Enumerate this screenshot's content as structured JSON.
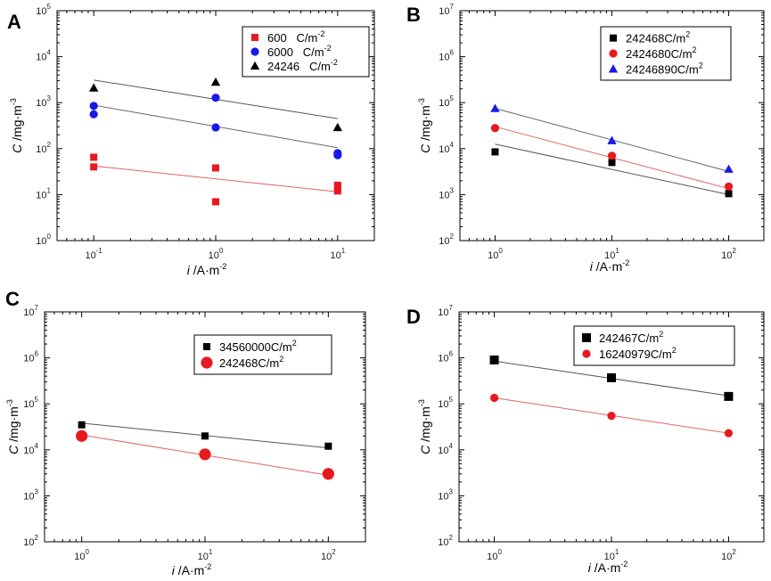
{
  "figure": {
    "description_labels": [
      "A",
      "B",
      "C",
      "D"
    ]
  },
  "chart_data": [
    {
      "panel": "A",
      "type": "scatter",
      "xscale": "log",
      "yscale": "log",
      "xlim": [
        0.05,
        20
      ],
      "ylim": [
        1,
        100000
      ],
      "xticks": [
        {
          "base": "10",
          "exp": "-1"
        },
        {
          "base": "10",
          "exp": "0"
        },
        {
          "base": "10",
          "exp": "1"
        }
      ],
      "xtick_values": [
        0.1,
        1,
        10
      ],
      "yticks": [
        {
          "base": "10",
          "exp": "0"
        },
        {
          "base": "10",
          "exp": "1"
        },
        {
          "base": "10",
          "exp": "2"
        },
        {
          "base": "10",
          "exp": "3"
        },
        {
          "base": "10",
          "exp": "4"
        },
        {
          "base": "10",
          "exp": "5"
        }
      ],
      "ytick_values": [
        1,
        10,
        100,
        1000,
        10000,
        100000
      ],
      "xlabel": {
        "italic": "i",
        "rest": " /A·m",
        "sup": "-2"
      },
      "ylabel": {
        "italic": "C",
        "rest": " /mg·m",
        "sup": "-3"
      },
      "legend": {
        "position": "top-right"
      },
      "series": [
        {
          "name": "600",
          "unit": "C/m",
          "unit_sup": "-2",
          "color": "#e8191e",
          "marker": "square",
          "marker_size": "small",
          "x": [
            0.1,
            0.1,
            1,
            1,
            10,
            10,
            10
          ],
          "y": [
            65,
            40,
            38,
            7,
            16,
            14,
            12
          ],
          "fit": {
            "x": [
              0.1,
              10
            ],
            "y": [
              42,
              11.5
            ]
          }
        },
        {
          "name": "6000",
          "unit": "C/m",
          "unit_sup": "-2",
          "color": "#1a1ae6",
          "marker": "circle",
          "marker_size": "small",
          "x": [
            0.1,
            0.1,
            1,
            1,
            10,
            10
          ],
          "y": [
            850,
            560,
            1280,
            290,
            80,
            72
          ],
          "fit": {
            "x": [
              0.1,
              10
            ],
            "y": [
              880,
              105
            ]
          }
        },
        {
          "name": "24246",
          "unit": "C/m",
          "unit_sup": "-2",
          "color": "#000000",
          "marker": "triangle",
          "marker_size": "small",
          "x": [
            0.1,
            1,
            10
          ],
          "y": [
            2100,
            2800,
            290
          ],
          "fit": {
            "x": [
              0.1,
              10
            ],
            "y": [
              3100,
              450
            ]
          }
        }
      ]
    },
    {
      "panel": "B",
      "type": "scatter",
      "xscale": "log",
      "yscale": "log",
      "xlim": [
        0.5,
        200
      ],
      "ylim": [
        100,
        10000000
      ],
      "xticks": [
        {
          "base": "10",
          "exp": "0"
        },
        {
          "base": "10",
          "exp": "1"
        },
        {
          "base": "10",
          "exp": "2"
        }
      ],
      "xtick_values": [
        1,
        10,
        100
      ],
      "yticks": [
        {
          "base": "10",
          "exp": "2"
        },
        {
          "base": "10",
          "exp": "3"
        },
        {
          "base": "10",
          "exp": "4"
        },
        {
          "base": "10",
          "exp": "5"
        },
        {
          "base": "10",
          "exp": "6"
        },
        {
          "base": "10",
          "exp": "7"
        }
      ],
      "ytick_values": [
        100,
        1000,
        10000,
        100000,
        1000000,
        10000000
      ],
      "xlabel": {
        "italic": "i",
        "rest": " /A·m",
        "sup": "-2"
      },
      "ylabel": {
        "italic": "C",
        "rest": " /mg·m",
        "sup": "-3"
      },
      "legend": {
        "position": "top-right"
      },
      "series": [
        {
          "name": "242468",
          "unit": "C/m",
          "unit_sup": "2",
          "color": "#000000",
          "marker": "square",
          "marker_size": "small",
          "x": [
            1,
            10,
            100
          ],
          "y": [
            8500,
            5000,
            1050
          ],
          "fit": {
            "x": [
              1,
              100
            ],
            "y": [
              12500,
              1000
            ]
          }
        },
        {
          "name": "2424680",
          "unit": "C/m",
          "unit_sup": "2",
          "color": "#e8191e",
          "marker": "circle",
          "marker_size": "small",
          "x": [
            1,
            10,
            100
          ],
          "y": [
            28000,
            7000,
            1500
          ],
          "fit": {
            "x": [
              1,
              100
            ],
            "y": [
              30000,
              1350
            ]
          }
        },
        {
          "name": "24246890",
          "unit": "C/m",
          "unit_sup": "2",
          "color": "#1a1ae6",
          "marker": "triangle",
          "marker_size": "small",
          "x": [
            1,
            10,
            100
          ],
          "y": [
            75000,
            15000,
            3600
          ],
          "fit": {
            "x": [
              1,
              100
            ],
            "y": [
              75000,
              3200
            ]
          }
        }
      ]
    },
    {
      "panel": "C",
      "type": "scatter",
      "xscale": "log",
      "yscale": "log",
      "xlim": [
        0.5,
        200
      ],
      "ylim": [
        100,
        10000000
      ],
      "xticks": [
        {
          "base": "10",
          "exp": "0"
        },
        {
          "base": "10",
          "exp": "1"
        },
        {
          "base": "10",
          "exp": "2"
        }
      ],
      "xtick_values": [
        1,
        10,
        100
      ],
      "yticks": [
        {
          "base": "10",
          "exp": "2"
        },
        {
          "base": "10",
          "exp": "3"
        },
        {
          "base": "10",
          "exp": "4"
        },
        {
          "base": "10",
          "exp": "5"
        },
        {
          "base": "10",
          "exp": "6"
        },
        {
          "base": "10",
          "exp": "7"
        }
      ],
      "ytick_values": [
        100,
        1000,
        10000,
        100000,
        1000000,
        10000000
      ],
      "xlabel": {
        "italic": "i",
        "rest": " /A·m",
        "sup": "-2"
      },
      "ylabel": {
        "italic": "C",
        "rest": " /mg·m",
        "sup": "-3"
      },
      "legend": {
        "position": "top-right"
      },
      "series": [
        {
          "name": "34560000",
          "unit": "C/m",
          "unit_sup": "2",
          "color": "#000000",
          "marker": "square",
          "marker_size": "small",
          "x": [
            1,
            10,
            100
          ],
          "y": [
            35000,
            20000,
            12000
          ],
          "fit": {
            "x": [
              1,
              100
            ],
            "y": [
              38000,
              11000
            ]
          }
        },
        {
          "name": "242468",
          "unit": "C/m",
          "unit_sup": "2",
          "color": "#e8191e",
          "marker": "circle",
          "marker_size": "large",
          "x": [
            1,
            10,
            100
          ],
          "y": [
            20000,
            8000,
            3000
          ],
          "fit": {
            "x": [
              1,
              100
            ],
            "y": [
              21000,
              2800
            ]
          }
        }
      ]
    },
    {
      "panel": "D",
      "type": "scatter",
      "xscale": "log",
      "yscale": "log",
      "xlim": [
        0.5,
        200
      ],
      "ylim": [
        100,
        10000000
      ],
      "xticks": [
        {
          "base": "10",
          "exp": "0"
        },
        {
          "base": "10",
          "exp": "1"
        },
        {
          "base": "10",
          "exp": "2"
        }
      ],
      "xtick_values": [
        1,
        10,
        100
      ],
      "yticks": [
        {
          "base": "10",
          "exp": "2"
        },
        {
          "base": "10",
          "exp": "3"
        },
        {
          "base": "10",
          "exp": "4"
        },
        {
          "base": "10",
          "exp": "5"
        },
        {
          "base": "10",
          "exp": "6"
        },
        {
          "base": "10",
          "exp": "7"
        }
      ],
      "ytick_values": [
        100,
        1000,
        10000,
        100000,
        1000000,
        10000000
      ],
      "xlabel": {
        "italic": "i",
        "rest": " /A·m",
        "sup": "-2"
      },
      "ylabel": {
        "italic": "C",
        "rest": " /mg·m",
        "sup": "-3"
      },
      "legend": {
        "position": "top-right"
      },
      "series": [
        {
          "name": "242467",
          "unit": "C/m",
          "unit_sup": "2",
          "color": "#000000",
          "marker": "square",
          "marker_size": "medium",
          "x": [
            1,
            10,
            100
          ],
          "y": [
            900000,
            370000,
            145000
          ],
          "fit": {
            "x": [
              1,
              100
            ],
            "y": [
              850000,
              150000
            ]
          }
        },
        {
          "name": "16240979",
          "unit": "C/m",
          "unit_sup": "2",
          "color": "#e8191e",
          "marker": "circle",
          "marker_size": "small",
          "x": [
            1,
            10,
            100
          ],
          "y": [
            135000,
            55000,
            23000
          ],
          "fit": {
            "x": [
              1,
              100
            ],
            "y": [
              135000,
              23000
            ]
          }
        }
      ]
    }
  ]
}
